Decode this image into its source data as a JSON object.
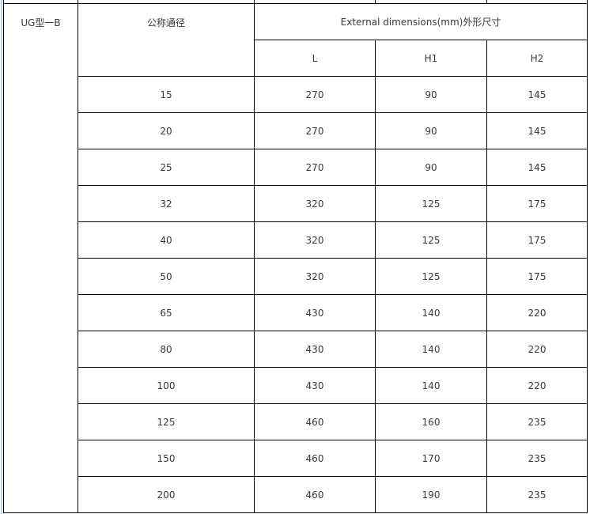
{
  "table": {
    "model": "UG型一B",
    "nominal_diameter_header": "公称通径",
    "dimensions_header": "External dimensions(mm)外形尺寸",
    "columns": [
      "L",
      "H1",
      "H2"
    ],
    "rows": [
      {
        "dn": "15",
        "L": "270",
        "H1": "90",
        "H2": "145"
      },
      {
        "dn": "20",
        "L": "270",
        "H1": "90",
        "H2": "145"
      },
      {
        "dn": "25",
        "L": "270",
        "H1": "90",
        "H2": "145"
      },
      {
        "dn": "32",
        "L": "320",
        "H1": "125",
        "H2": "175"
      },
      {
        "dn": "40",
        "L": "320",
        "H1": "125",
        "H2": "175"
      },
      {
        "dn": "50",
        "L": "320",
        "H1": "125",
        "H2": "175"
      },
      {
        "dn": "65",
        "L": "430",
        "H1": "140",
        "H2": "220"
      },
      {
        "dn": "80",
        "L": "430",
        "H1": "140",
        "H2": "220"
      },
      {
        "dn": "100",
        "L": "430",
        "H1": "140",
        "H2": "220"
      },
      {
        "dn": "125",
        "L": "460",
        "H1": "160",
        "H2": "235"
      },
      {
        "dn": "150",
        "L": "460",
        "H1": "170",
        "H2": "235"
      },
      {
        "dn": "200",
        "L": "460",
        "H1": "190",
        "H2": "235"
      }
    ]
  }
}
